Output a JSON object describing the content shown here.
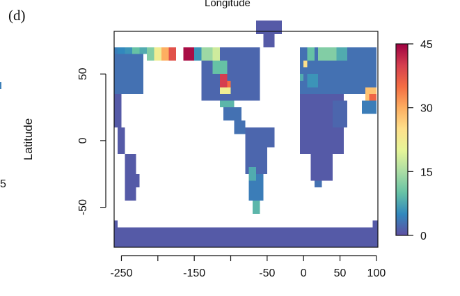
{
  "panel_label": "(d)",
  "top_label": "Longitude",
  "stray_left_value": "5",
  "chart_data": {
    "type": "heatmap",
    "title": "Longitude",
    "xlabel": "",
    "ylabel": "Latitude",
    "x_ticks": [
      -250,
      -150,
      -50,
      0,
      50,
      100
    ],
    "x_tick_labels": [
      "-250",
      "-150",
      "-50",
      "0",
      "50",
      "100"
    ],
    "y_ticks": [
      50,
      0,
      -50
    ],
    "y_tick_labels": [
      "50",
      "0",
      "-50"
    ],
    "xlim": [
      -260,
      102
    ],
    "ylim": [
      -80,
      82
    ],
    "cell_size_deg": 5,
    "colorbar": {
      "ticks": [
        45,
        30,
        15,
        0
      ],
      "tick_labels": [
        "45",
        "30",
        "15",
        "0"
      ],
      "range": [
        0,
        45
      ],
      "palette": [
        "#5e4fa2",
        "#3288bd",
        "#66c2a5",
        "#abdda4",
        "#e6f598",
        "#fee08b",
        "#fdae61",
        "#f46d43",
        "#d53e4f",
        "#9e0142"
      ]
    },
    "base_value": 1,
    "land_rects": [
      {
        "x": [
          -260,
          -220
        ],
        "y": [
          35,
          70
        ],
        "v": 3
      },
      {
        "x": [
          -225,
          -215
        ],
        "y": [
          65,
          70
        ],
        "v": 8
      },
      {
        "x": [
          -235,
          -225
        ],
        "y": [
          65,
          70
        ],
        "v": 10
      },
      {
        "x": [
          -245,
          -235
        ],
        "y": [
          65,
          70
        ],
        "v": 6
      },
      {
        "x": [
          -255,
          -245
        ],
        "y": [
          65,
          70
        ],
        "v": 5
      },
      {
        "x": [
          -260,
          -255
        ],
        "y": [
          65,
          70
        ],
        "v": 4
      },
      {
        "x": [
          -260,
          -250
        ],
        "y": [
          10,
          35
        ],
        "v": 1
      },
      {
        "x": [
          -255,
          -245
        ],
        "y": [
          -10,
          10
        ],
        "v": 1
      },
      {
        "x": [
          -245,
          -230
        ],
        "y": [
          -45,
          -10
        ],
        "v": 1
      },
      {
        "x": [
          -230,
          -225
        ],
        "y": [
          -35,
          -25
        ],
        "v": 1
      },
      {
        "x": [
          -215,
          -205
        ],
        "y": [
          60,
          70
        ],
        "v": 12
      },
      {
        "x": [
          -205,
          -195
        ],
        "y": [
          60,
          70
        ],
        "v": 22
      },
      {
        "x": [
          -195,
          -185
        ],
        "y": [
          60,
          70
        ],
        "v": 30
      },
      {
        "x": [
          -185,
          -175
        ],
        "y": [
          60,
          70
        ],
        "v": 38
      },
      {
        "x": [
          -165,
          -150
        ],
        "y": [
          60,
          70
        ],
        "v": 44
      },
      {
        "x": [
          -150,
          -140
        ],
        "y": [
          60,
          70
        ],
        "v": 6
      },
      {
        "x": [
          -140,
          -125
        ],
        "y": [
          60,
          70
        ],
        "v": 14
      },
      {
        "x": [
          -125,
          -115
        ],
        "y": [
          60,
          70
        ],
        "v": 18
      },
      {
        "x": [
          -140,
          -60
        ],
        "y": [
          30,
          60
        ],
        "v": 2
      },
      {
        "x": [
          -125,
          -105
        ],
        "y": [
          50,
          60
        ],
        "v": 10
      },
      {
        "x": [
          -115,
          -105
        ],
        "y": [
          40,
          50
        ],
        "v": 40
      },
      {
        "x": [
          -105,
          -100
        ],
        "y": [
          40,
          45
        ],
        "v": 35
      },
      {
        "x": [
          -115,
          -100
        ],
        "y": [
          35,
          40
        ],
        "v": 22
      },
      {
        "x": [
          -115,
          -95
        ],
        "y": [
          25,
          30
        ],
        "v": 9
      },
      {
        "x": [
          -110,
          -85
        ],
        "y": [
          15,
          25
        ],
        "v": 3
      },
      {
        "x": [
          -95,
          -80
        ],
        "y": [
          5,
          15
        ],
        "v": 3
      },
      {
        "x": [
          -115,
          -60
        ],
        "y": [
          60,
          70
        ],
        "v": 2
      },
      {
        "x": [
          -80,
          -40
        ],
        "y": [
          -5,
          10
        ],
        "v": 2
      },
      {
        "x": [
          -80,
          -50
        ],
        "y": [
          -25,
          -5
        ],
        "v": 2
      },
      {
        "x": [
          -75,
          -55
        ],
        "y": [
          -45,
          -25
        ],
        "v": 4
      },
      {
        "x": [
          -70,
          -60
        ],
        "y": [
          -55,
          -45
        ],
        "v": 9
      },
      {
        "x": [
          -75,
          -65
        ],
        "y": [
          -30,
          -20
        ],
        "v": 8
      },
      {
        "x": [
          -65,
          -30
        ],
        "y": [
          80,
          90
        ],
        "v": 1
      },
      {
        "x": [
          -55,
          -40
        ],
        "y": [
          70,
          80
        ],
        "v": 1
      },
      {
        "x": [
          -5,
          100
        ],
        "y": [
          35,
          70
        ],
        "v": 3
      },
      {
        "x": [
          0,
          5
        ],
        "y": [
          55,
          60
        ],
        "v": 25
      },
      {
        "x": [
          5,
          15
        ],
        "y": [
          60,
          70
        ],
        "v": 10
      },
      {
        "x": [
          20,
          45
        ],
        "y": [
          60,
          70
        ],
        "v": 12
      },
      {
        "x": [
          45,
          60
        ],
        "y": [
          60,
          70
        ],
        "v": 8
      },
      {
        "x": [
          -5,
          0
        ],
        "y": [
          45,
          50
        ],
        "v": 8
      },
      {
        "x": [
          5,
          20
        ],
        "y": [
          40,
          50
        ],
        "v": 6
      },
      {
        "x": [
          -5,
          55
        ],
        "y": [
          -10,
          35
        ],
        "v": 1
      },
      {
        "x": [
          10,
          40
        ],
        "y": [
          -30,
          -10
        ],
        "v": 1
      },
      {
        "x": [
          15,
          25
        ],
        "y": [
          -35,
          -30
        ],
        "v": 3
      },
      {
        "x": [
          40,
          60
        ],
        "y": [
          10,
          30
        ],
        "v": 2
      },
      {
        "x": [
          85,
          100
        ],
        "y": [
          30,
          40
        ],
        "v": 28
      },
      {
        "x": [
          90,
          100
        ],
        "y": [
          30,
          35
        ],
        "v": 36
      },
      {
        "x": [
          80,
          100
        ],
        "y": [
          20,
          30
        ],
        "v": 4
      },
      {
        "x": [
          -260,
          102
        ],
        "y": [
          -80,
          -65
        ],
        "v": 1
      },
      {
        "x": [
          -260,
          -255
        ],
        "y": [
          -65,
          -60
        ],
        "v": 1
      },
      {
        "x": [
          95,
          102
        ],
        "y": [
          -65,
          -60
        ],
        "v": 1
      }
    ]
  }
}
